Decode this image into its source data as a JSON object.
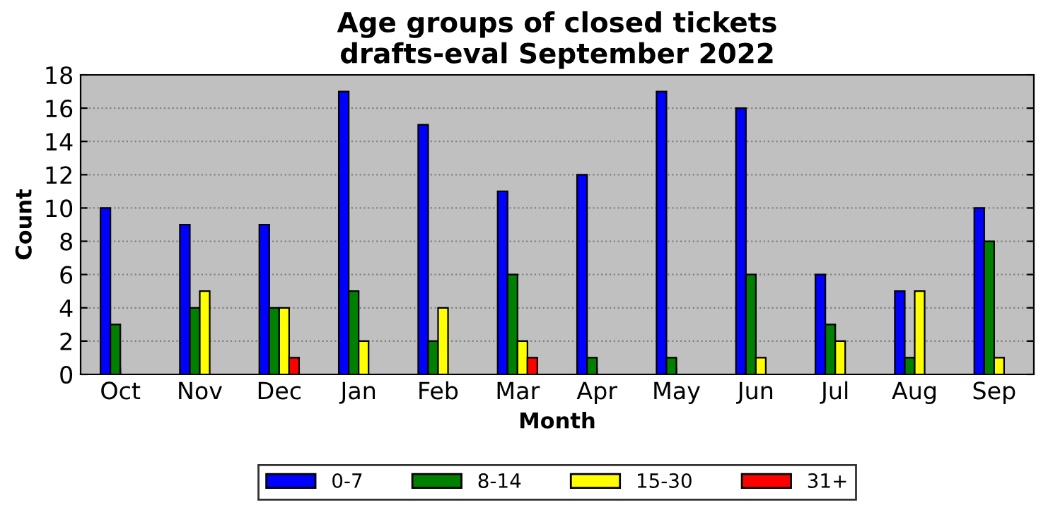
{
  "chart_data": {
    "type": "bar",
    "title": "Age groups of closed tickets\ndrafts-eval September 2022",
    "xlabel": "Month",
    "ylabel": "Count",
    "categories": [
      "Oct",
      "Nov",
      "Dec",
      "Jan",
      "Feb",
      "Mar",
      "Apr",
      "May",
      "Jun",
      "Jul",
      "Aug",
      "Sep"
    ],
    "series": [
      {
        "name": "0-7",
        "color": "#0000ff",
        "values": [
          10,
          9,
          9,
          17,
          15,
          11,
          12,
          17,
          16,
          6,
          5,
          10
        ]
      },
      {
        "name": "8-14",
        "color": "#008000",
        "values": [
          3,
          4,
          4,
          5,
          2,
          6,
          1,
          1,
          6,
          3,
          1,
          8
        ]
      },
      {
        "name": "15-30",
        "color": "#ffff00",
        "values": [
          0,
          5,
          4,
          2,
          4,
          2,
          0,
          0,
          1,
          2,
          5,
          1
        ]
      },
      {
        "name": "31+",
        "color": "#ff0000",
        "values": [
          0,
          0,
          1,
          0,
          0,
          1,
          0,
          0,
          0,
          0,
          0,
          0
        ]
      }
    ],
    "ylim": [
      0,
      18
    ],
    "yticks": [
      0,
      2,
      4,
      6,
      8,
      10,
      12,
      14,
      16,
      18
    ],
    "grid": "y",
    "legend": "bottom"
  }
}
